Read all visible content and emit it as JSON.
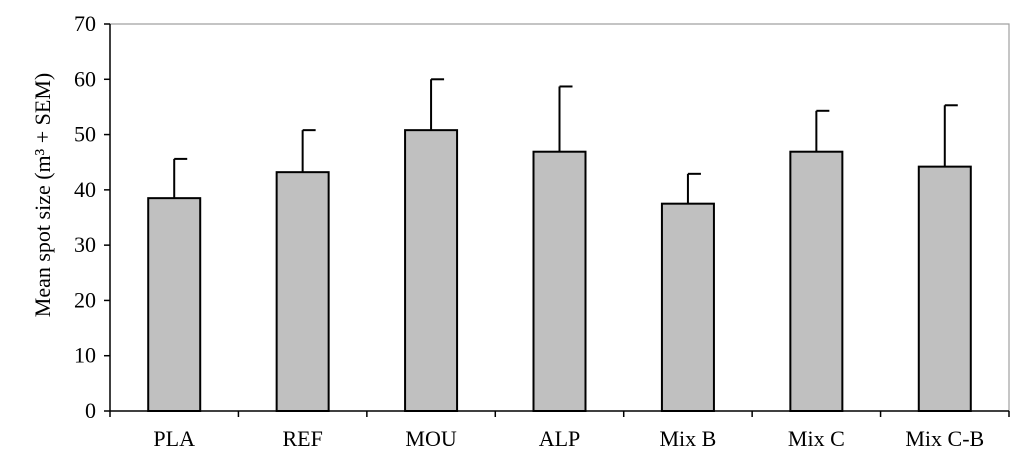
{
  "chart_data": {
    "type": "bar",
    "categories": [
      "PLA",
      "REF",
      "MOU",
      "ALP",
      "Mix B",
      "Mix C",
      "Mix C-B"
    ],
    "values": [
      38.5,
      43.2,
      50.8,
      46.9,
      37.5,
      46.9,
      44.2
    ],
    "errors": [
      7.1,
      7.6,
      9.2,
      11.8,
      5.4,
      7.4,
      11.1
    ],
    "title": "",
    "xlabel": "",
    "ylabel": "Mean spot size (m³ + SEM)",
    "ylim": [
      0,
      70
    ],
    "yticks": [
      0,
      10,
      20,
      30,
      40,
      50,
      60,
      70
    ],
    "grid": false,
    "legend": "none",
    "colors": {
      "bar_fill": "#c0c0c0",
      "bar_stroke": "#000000",
      "frame": "#a0a0a0"
    }
  }
}
